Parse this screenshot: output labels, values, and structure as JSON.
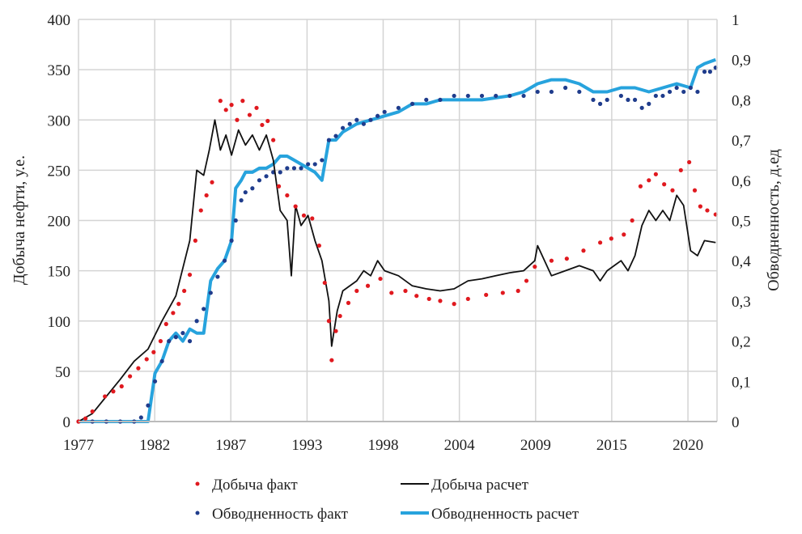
{
  "chart_data": {
    "type": "line",
    "xlabel": "",
    "ylabel": "Добыча нефти, у.е.",
    "y2label": "Обводненность, д.ед",
    "xlim": [
      1977,
      2022.9
    ],
    "ylim": [
      0,
      400
    ],
    "y2lim": [
      0,
      1
    ],
    "x_ticks": [
      1977,
      1982.48,
      1987.95,
      1993.43,
      1998.9,
      2004.38,
      2009.86,
      2015.33,
      2020.81
    ],
    "x_tick_labels": [
      "1977",
      "1982",
      "1987",
      "1993",
      "1998",
      "2004",
      "2009",
      "2015",
      "2020"
    ],
    "y_ticks": [
      0,
      50,
      100,
      150,
      200,
      250,
      300,
      350,
      400
    ],
    "y_tick_labels": [
      "0",
      "50",
      "100",
      "150",
      "200",
      "250",
      "300",
      "350",
      "400"
    ],
    "y2_ticks": [
      0,
      0.1,
      0.2,
      0.3,
      0.4,
      0.5,
      0.6,
      0.7,
      0.8,
      0.9,
      1
    ],
    "y2_tick_labels": [
      "0",
      "0,1",
      "0,2",
      "0,3",
      "0,4",
      "0,5",
      "0,6",
      "0,7",
      "0,8",
      "0,9",
      "1"
    ],
    "grid": true,
    "legend_placement": "bottom",
    "colors": {
      "oil_fact": "#e0191f",
      "oil_calc": "#111111",
      "watercut_fact": "#1f3c8c",
      "watercut_calc": "#27a3dd",
      "grid": "#d4d4d4"
    },
    "series": [
      {
        "name": "Добыча факт",
        "style": "scatter",
        "axis": "left",
        "x": [
          1977,
          1977.5,
          1978,
          1978.9,
          1979.5,
          1980.1,
          1980.7,
          1981.3,
          1981.9,
          1982.4,
          1982.9,
          1983.3,
          1983.8,
          1984.2,
          1984.6,
          1985,
          1985.4,
          1985.8,
          1986.2,
          1986.6,
          1987.2,
          1987.6,
          1988,
          1988.4,
          1988.8,
          1989.3,
          1989.8,
          1990.2,
          1990.6,
          1991,
          1991.4,
          1992,
          1992.6,
          1993.2,
          1993.8,
          1994.3,
          1994.7,
          1995,
          1995.2,
          1995.5,
          1995.8,
          1996.4,
          1997,
          1997.8,
          1998.7,
          1999.5,
          2000.5,
          2001.3,
          2002.2,
          2003,
          2004,
          2005,
          2006.3,
          2007.5,
          2008.6,
          2009.2,
          2009.8,
          2011,
          2012.1,
          2013.3,
          2014.5,
          2015.3,
          2016.2,
          2016.8,
          2017.4,
          2018,
          2018.5,
          2019.1,
          2019.7,
          2020.3,
          2020.9,
          2021.3,
          2021.7,
          2022.2,
          2022.8
        ],
        "y": [
          0,
          3,
          10,
          25,
          30,
          35,
          45,
          53,
          62,
          69,
          80,
          97,
          108,
          117,
          130,
          146,
          180,
          210,
          225,
          238,
          319,
          310,
          315,
          300,
          319,
          305,
          312,
          295,
          299,
          280,
          234,
          225,
          214,
          205,
          202,
          175,
          138,
          100,
          61,
          90,
          105,
          118,
          130,
          135,
          142,
          128,
          130,
          125,
          122,
          120,
          117,
          122,
          126,
          128,
          130,
          140,
          154,
          160,
          162,
          170,
          178,
          182,
          186,
          200,
          234,
          240,
          246,
          236,
          230,
          250,
          258,
          230,
          214,
          210,
          206
        ]
      },
      {
        "name": "Добыча расчет",
        "style": "line",
        "axis": "left",
        "x": [
          1977,
          1978,
          1979,
          1980,
          1981,
          1982,
          1983,
          1984,
          1985,
          1985.5,
          1986,
          1986.4,
          1986.8,
          1987.2,
          1987.6,
          1988,
          1988.5,
          1989,
          1989.5,
          1990,
          1990.5,
          1991,
          1991.5,
          1992,
          1992.3,
          1992.6,
          1993,
          1993.5,
          1994,
          1994.5,
          1995,
          1995.2,
          1995.6,
          1996,
          1997,
          1997.5,
          1998,
          1998.5,
          1999,
          2000,
          2001,
          2002,
          2003,
          2004,
          2005,
          2006,
          2007,
          2008,
          2009,
          2009.8,
          2010,
          2011,
          2012,
          2013,
          2014,
          2014.5,
          2015,
          2016,
          2016.5,
          2017,
          2017.5,
          2018,
          2018.5,
          2019,
          2019.5,
          2020,
          2020.5,
          2021,
          2021.5,
          2022,
          2022.8
        ],
        "y": [
          0,
          8,
          25,
          42,
          60,
          72,
          100,
          125,
          180,
          250,
          245,
          270,
          300,
          270,
          285,
          265,
          290,
          275,
          285,
          270,
          285,
          260,
          210,
          200,
          145,
          215,
          195,
          205,
          180,
          160,
          120,
          75,
          110,
          130,
          140,
          150,
          145,
          160,
          150,
          145,
          135,
          132,
          130,
          132,
          140,
          142,
          145,
          148,
          150,
          160,
          175,
          145,
          150,
          155,
          150,
          140,
          150,
          160,
          150,
          165,
          195,
          210,
          200,
          210,
          200,
          225,
          215,
          170,
          165,
          180,
          178
        ]
      },
      {
        "name": "Обводненность факт",
        "style": "scatter",
        "axis": "right",
        "x": [
          1977,
          1978,
          1979,
          1980,
          1981,
          1981.5,
          1982,
          1982.5,
          1983,
          1983.5,
          1984,
          1984.5,
          1985,
          1985.5,
          1986,
          1986.5,
          1987,
          1987.5,
          1988,
          1988.3,
          1988.7,
          1989,
          1989.5,
          1990,
          1990.5,
          1991,
          1991.5,
          1992,
          1992.5,
          1993,
          1993.5,
          1994,
          1994.5,
          1995,
          1995.5,
          1996,
          1996.5,
          1997,
          1997.5,
          1998,
          1998.5,
          1999,
          2000,
          2001,
          2002,
          2003,
          2004,
          2005,
          2006,
          2007,
          2008,
          2009,
          2010,
          2011,
          2012,
          2013,
          2014,
          2014.5,
          2015,
          2016,
          2016.5,
          2017,
          2017.5,
          2018,
          2018.5,
          2019,
          2019.5,
          2020,
          2020.5,
          2021,
          2021.5,
          2022,
          2022.4,
          2022.8
        ],
        "y": [
          0,
          0,
          0,
          0,
          0,
          0.01,
          0.04,
          0.1,
          0.15,
          0.2,
          0.21,
          0.22,
          0.2,
          0.25,
          0.28,
          0.32,
          0.36,
          0.4,
          0.45,
          0.5,
          0.55,
          0.57,
          0.58,
          0.6,
          0.61,
          0.62,
          0.62,
          0.63,
          0.63,
          0.63,
          0.64,
          0.64,
          0.65,
          0.7,
          0.71,
          0.73,
          0.74,
          0.75,
          0.74,
          0.75,
          0.76,
          0.77,
          0.78,
          0.79,
          0.8,
          0.8,
          0.81,
          0.81,
          0.81,
          0.81,
          0.81,
          0.81,
          0.82,
          0.82,
          0.83,
          0.82,
          0.8,
          0.79,
          0.8,
          0.81,
          0.8,
          0.8,
          0.78,
          0.79,
          0.81,
          0.81,
          0.82,
          0.83,
          0.82,
          0.83,
          0.82,
          0.87,
          0.87,
          0.88
        ]
      },
      {
        "name": "Обводненность расчет",
        "style": "line",
        "axis": "right",
        "x": [
          1977,
          1978,
          1979,
          1980,
          1981,
          1982,
          1982.5,
          1983,
          1983.5,
          1984,
          1984.5,
          1985,
          1985.5,
          1986,
          1986.5,
          1987,
          1987.5,
          1988,
          1988.3,
          1988.7,
          1989,
          1989.5,
          1990,
          1990.5,
          1991,
          1991.5,
          1992,
          1992.5,
          1993,
          1993.5,
          1994,
          1994.5,
          1995,
          1995.5,
          1996,
          1997,
          1998,
          1999,
          2000,
          2001,
          2002,
          2003,
          2004,
          2006,
          2008,
          2009,
          2010,
          2011,
          2012,
          2013,
          2014,
          2015,
          2016,
          2017,
          2018,
          2019,
          2020,
          2021,
          2021.5,
          2022,
          2022.8
        ],
        "y": [
          0,
          0,
          0,
          0,
          0,
          0,
          0.12,
          0.15,
          0.2,
          0.22,
          0.2,
          0.23,
          0.22,
          0.22,
          0.35,
          0.38,
          0.4,
          0.45,
          0.58,
          0.6,
          0.62,
          0.62,
          0.63,
          0.63,
          0.64,
          0.66,
          0.66,
          0.65,
          0.64,
          0.63,
          0.62,
          0.6,
          0.7,
          0.7,
          0.72,
          0.74,
          0.75,
          0.76,
          0.77,
          0.79,
          0.79,
          0.8,
          0.8,
          0.8,
          0.81,
          0.82,
          0.84,
          0.85,
          0.85,
          0.84,
          0.82,
          0.82,
          0.83,
          0.83,
          0.82,
          0.83,
          0.84,
          0.83,
          0.88,
          0.89,
          0.9
        ]
      }
    ]
  }
}
